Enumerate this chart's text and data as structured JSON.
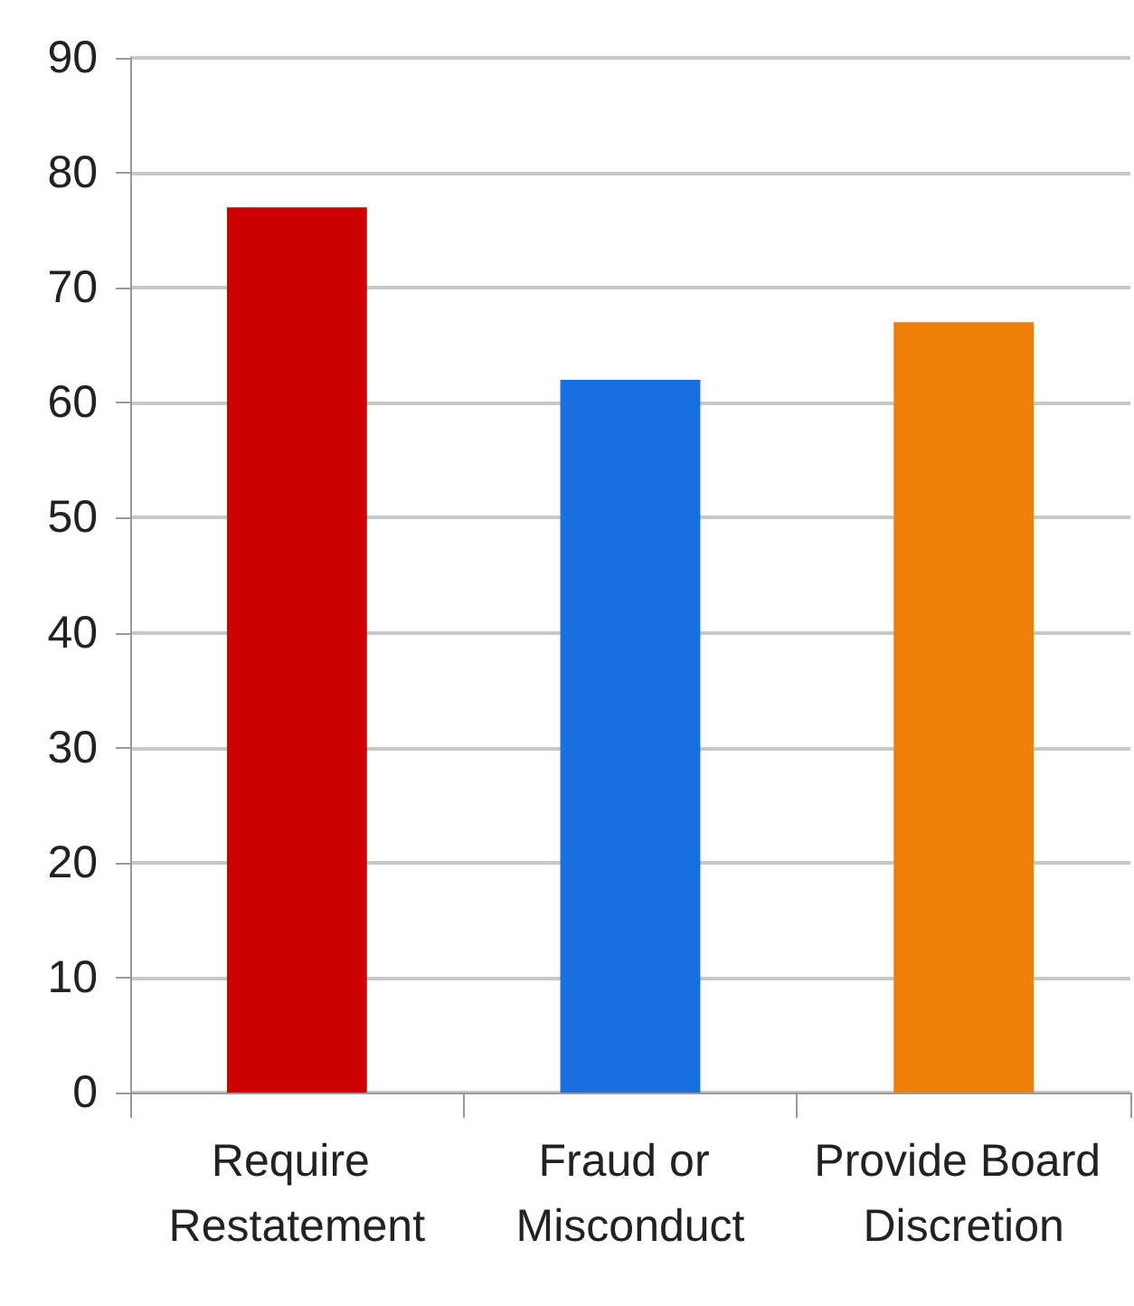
{
  "chart_data": {
    "type": "bar",
    "categories": [
      "Require Restatement",
      "Fraud or Misconduct",
      "Provide Board Discretion"
    ],
    "values": [
      77,
      62,
      67
    ],
    "colors": [
      "#cc0000",
      "#1a6fe0",
      "#f07f0a"
    ],
    "ylim": [
      0,
      90
    ],
    "yticks": [
      0,
      10,
      20,
      30,
      40,
      50,
      60,
      70,
      80,
      90
    ],
    "grid": "y"
  }
}
